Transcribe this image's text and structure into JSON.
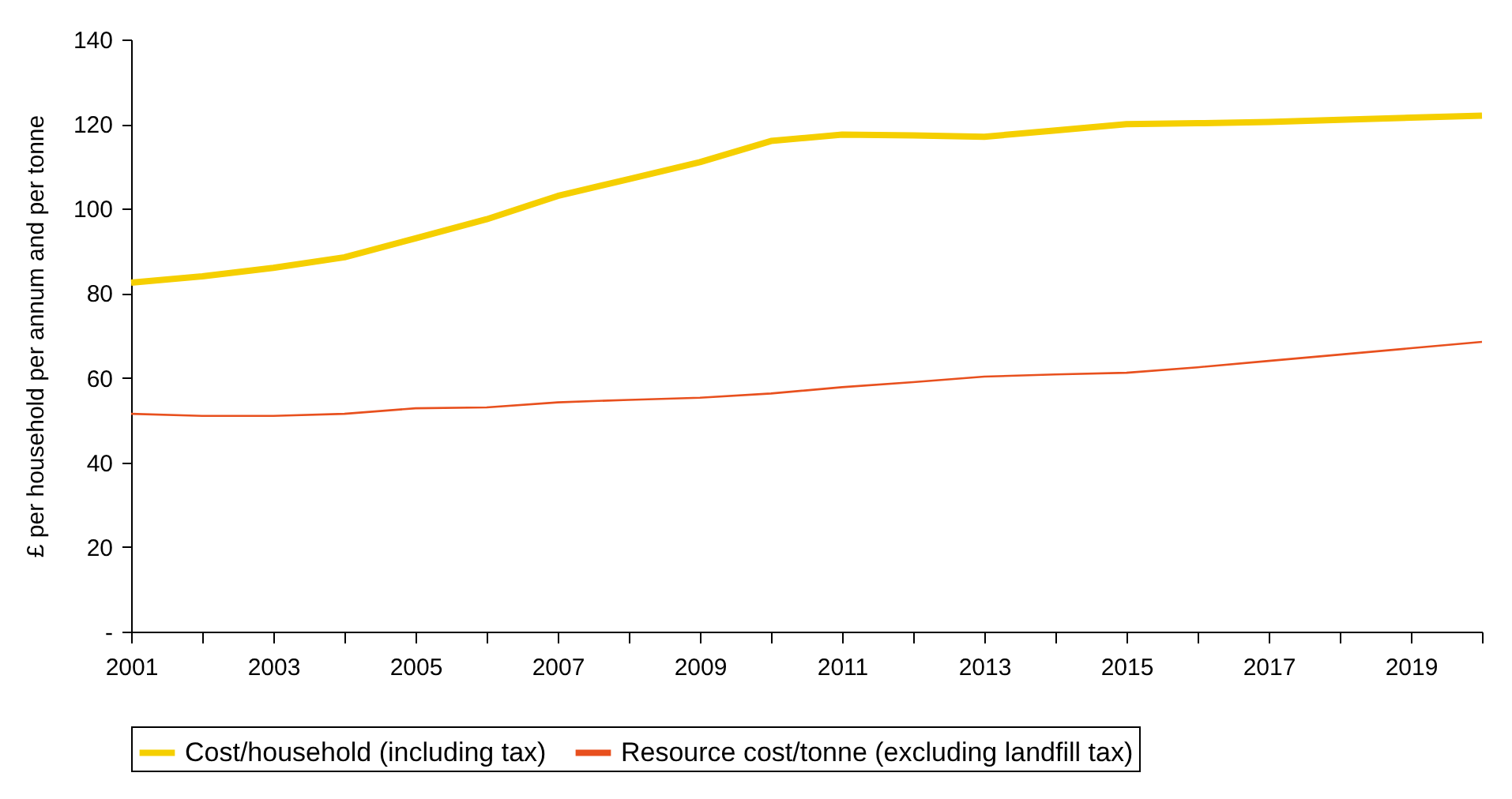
{
  "chart_data": {
    "type": "line",
    "ylabel": "£ per household per annum and per tonne",
    "x": [
      2001,
      2002,
      2003,
      2004,
      2005,
      2006,
      2007,
      2008,
      2009,
      2010,
      2011,
      2012,
      2013,
      2014,
      2015,
      2016,
      2017,
      2018,
      2019,
      2020
    ],
    "series": [
      {
        "name": "Cost/household (including tax)",
        "color": "#f5cf00",
        "values": [
          82.5,
          84,
          86,
          88.5,
          93,
          97.5,
          103,
          107,
          111,
          116,
          117.5,
          117.3,
          117,
          118.5,
          120,
          120.2,
          120.5,
          121,
          121.5,
          122
        ]
      },
      {
        "name": "Resource cost/tonne (excluding landfill tax)",
        "color": "#e8501e",
        "values": [
          51.5,
          51,
          51,
          51.5,
          52.8,
          53,
          54.2,
          54.8,
          55.3,
          56.3,
          57.8,
          59,
          60.3,
          60.8,
          61.2,
          62.5,
          64,
          65.5,
          67,
          68.5
        ]
      }
    ],
    "xlim": [
      2001,
      2020
    ],
    "xticks": [
      2001,
      {
        "value": 2002,
        "label": null
      },
      2003,
      {
        "value": 2004,
        "label": null
      },
      2005,
      {
        "value": 2006,
        "label": null
      },
      2007,
      {
        "value": 2008,
        "label": null
      },
      2009,
      {
        "value": 2010,
        "label": null
      },
      2011,
      {
        "value": 2012,
        "label": null
      },
      2013,
      {
        "value": 2014,
        "label": null
      },
      2015,
      {
        "value": 2016,
        "label": null
      },
      2017,
      {
        "value": 2018,
        "label": null
      },
      2019,
      {
        "value": 2020,
        "label": null
      }
    ],
    "ylim": [
      0,
      140
    ],
    "yticks": [
      {
        "value": 0,
        "label": "-"
      },
      20,
      40,
      60,
      80,
      100,
      120,
      140
    ],
    "grid": false,
    "legend": "bottom",
    "marker": "none",
    "line_style": "solid"
  }
}
